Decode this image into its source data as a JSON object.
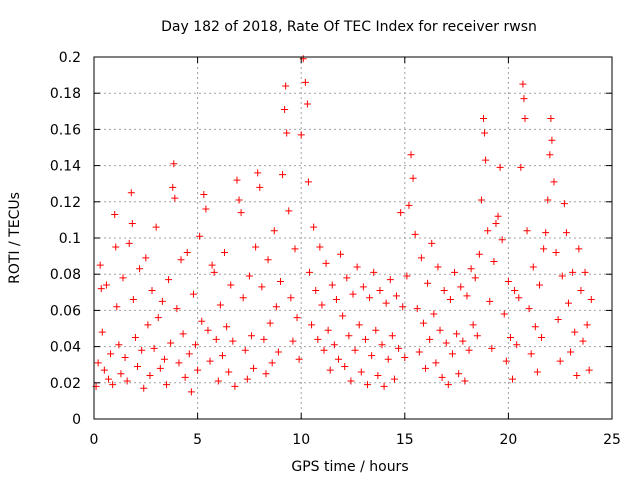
{
  "chart_data": {
    "type": "scatter",
    "title": "Day 182 of 2018, Rate Of TEC Index for receiver rwsn",
    "xlabel": "GPS time / hours",
    "ylabel": "ROTI / TECUs",
    "xlim": [
      0,
      25
    ],
    "ylim": [
      0,
      0.2
    ],
    "xticks": [
      "0",
      "5",
      "10",
      "15",
      "20",
      "25"
    ],
    "yticks": [
      "0",
      "0.02",
      "0.04",
      "0.06",
      "0.08",
      "0.1",
      "0.12",
      "0.14",
      "0.16",
      "0.18",
      "0.2"
    ],
    "grid": true,
    "marker": "+",
    "color": "#ff0000",
    "series": [
      {
        "points": [
          [
            0.1,
            0.018
          ],
          [
            0.2,
            0.031
          ],
          [
            0.3,
            0.085
          ],
          [
            0.35,
            0.072
          ],
          [
            0.4,
            0.048
          ],
          [
            0.5,
            0.027
          ],
          [
            0.6,
            0.074
          ],
          [
            0.7,
            0.022
          ],
          [
            0.8,
            0.036
          ],
          [
            0.9,
            0.019
          ],
          [
            1.0,
            0.113
          ],
          [
            1.05,
            0.095
          ],
          [
            1.1,
            0.062
          ],
          [
            1.2,
            0.041
          ],
          [
            1.3,
            0.025
          ],
          [
            1.4,
            0.078
          ],
          [
            1.5,
            0.034
          ],
          [
            1.6,
            0.021
          ],
          [
            1.7,
            0.097
          ],
          [
            1.8,
            0.125
          ],
          [
            1.85,
            0.108
          ],
          [
            1.9,
            0.066
          ],
          [
            2.0,
            0.045
          ],
          [
            2.1,
            0.029
          ],
          [
            2.2,
            0.083
          ],
          [
            2.3,
            0.038
          ],
          [
            2.4,
            0.017
          ],
          [
            2.5,
            0.089
          ],
          [
            2.6,
            0.052
          ],
          [
            2.7,
            0.024
          ],
          [
            2.8,
            0.071
          ],
          [
            2.9,
            0.039
          ],
          [
            3.0,
            0.106
          ],
          [
            3.1,
            0.056
          ],
          [
            3.2,
            0.028
          ],
          [
            3.3,
            0.065
          ],
          [
            3.4,
            0.033
          ],
          [
            3.5,
            0.019
          ],
          [
            3.6,
            0.077
          ],
          [
            3.7,
            0.042
          ],
          [
            3.8,
            0.128
          ],
          [
            3.85,
            0.141
          ],
          [
            3.9,
            0.122
          ],
          [
            4.0,
            0.061
          ],
          [
            4.1,
            0.031
          ],
          [
            4.2,
            0.088
          ],
          [
            4.3,
            0.047
          ],
          [
            4.4,
            0.023
          ],
          [
            4.5,
            0.092
          ],
          [
            4.6,
            0.036
          ],
          [
            4.7,
            0.015
          ],
          [
            4.8,
            0.069
          ],
          [
            4.9,
            0.041
          ],
          [
            5.0,
            0.027
          ],
          [
            5.1,
            0.101
          ],
          [
            5.2,
            0.054
          ],
          [
            5.3,
            0.124
          ],
          [
            5.4,
            0.116
          ],
          [
            5.5,
            0.049
          ],
          [
            5.6,
            0.032
          ],
          [
            5.7,
            0.085
          ],
          [
            5.8,
            0.081
          ],
          [
            5.9,
            0.044
          ],
          [
            6.0,
            0.021
          ],
          [
            6.1,
            0.063
          ],
          [
            6.2,
            0.035
          ],
          [
            6.3,
            0.092
          ],
          [
            6.4,
            0.051
          ],
          [
            6.5,
            0.026
          ],
          [
            6.6,
            0.074
          ],
          [
            6.7,
            0.043
          ],
          [
            6.8,
            0.018
          ],
          [
            6.9,
            0.132
          ],
          [
            7.0,
            0.121
          ],
          [
            7.1,
            0.114
          ],
          [
            7.2,
            0.067
          ],
          [
            7.3,
            0.038
          ],
          [
            7.4,
            0.022
          ],
          [
            7.5,
            0.079
          ],
          [
            7.6,
            0.046
          ],
          [
            7.7,
            0.028
          ],
          [
            7.8,
            0.095
          ],
          [
            7.9,
            0.136
          ],
          [
            8.0,
            0.128
          ],
          [
            8.1,
            0.073
          ],
          [
            8.2,
            0.044
          ],
          [
            8.3,
            0.025
          ],
          [
            8.4,
            0.088
          ],
          [
            8.5,
            0.053
          ],
          [
            8.6,
            0.031
          ],
          [
            8.7,
            0.104
          ],
          [
            8.8,
            0.062
          ],
          [
            8.9,
            0.037
          ],
          [
            9.0,
            0.076
          ],
          [
            9.1,
            0.135
          ],
          [
            9.2,
            0.171
          ],
          [
            9.25,
            0.184
          ],
          [
            9.3,
            0.158
          ],
          [
            9.4,
            0.115
          ],
          [
            9.5,
            0.067
          ],
          [
            9.6,
            0.043
          ],
          [
            9.7,
            0.094
          ],
          [
            9.8,
            0.056
          ],
          [
            9.9,
            0.033
          ],
          [
            10.0,
            0.157
          ],
          [
            10.1,
            0.199
          ],
          [
            10.2,
            0.186
          ],
          [
            10.3,
            0.174
          ],
          [
            10.35,
            0.131
          ],
          [
            10.4,
            0.081
          ],
          [
            10.5,
            0.052
          ],
          [
            10.6,
            0.106
          ],
          [
            10.7,
            0.071
          ],
          [
            10.8,
            0.044
          ],
          [
            10.9,
            0.095
          ],
          [
            11.0,
            0.063
          ],
          [
            11.1,
            0.038
          ],
          [
            11.2,
            0.086
          ],
          [
            11.3,
            0.049
          ],
          [
            11.4,
            0.027
          ],
          [
            11.5,
            0.074
          ],
          [
            11.6,
            0.041
          ],
          [
            11.7,
            0.066
          ],
          [
            11.8,
            0.033
          ],
          [
            11.9,
            0.091
          ],
          [
            12.0,
            0.057
          ],
          [
            12.1,
            0.029
          ],
          [
            12.2,
            0.078
          ],
          [
            12.3,
            0.046
          ],
          [
            12.4,
            0.021
          ],
          [
            12.5,
            0.069
          ],
          [
            12.6,
            0.038
          ],
          [
            12.7,
            0.084
          ],
          [
            12.8,
            0.052
          ],
          [
            12.9,
            0.026
          ],
          [
            13.0,
            0.073
          ],
          [
            13.1,
            0.044
          ],
          [
            13.2,
            0.019
          ],
          [
            13.3,
            0.067
          ],
          [
            13.4,
            0.035
          ],
          [
            13.5,
            0.081
          ],
          [
            13.6,
            0.049
          ],
          [
            13.7,
            0.024
          ],
          [
            13.8,
            0.071
          ],
          [
            13.9,
            0.041
          ],
          [
            14.0,
            0.018
          ],
          [
            14.1,
            0.064
          ],
          [
            14.2,
            0.033
          ],
          [
            14.3,
            0.077
          ],
          [
            14.4,
            0.046
          ],
          [
            14.5,
            0.022
          ],
          [
            14.6,
            0.068
          ],
          [
            14.7,
            0.039
          ],
          [
            14.8,
            0.114
          ],
          [
            14.9,
            0.062
          ],
          [
            15.0,
            0.034
          ],
          [
            15.1,
            0.079
          ],
          [
            15.2,
            0.118
          ],
          [
            15.3,
            0.146
          ],
          [
            15.4,
            0.133
          ],
          [
            15.5,
            0.102
          ],
          [
            15.6,
            0.061
          ],
          [
            15.7,
            0.037
          ],
          [
            15.8,
            0.089
          ],
          [
            15.9,
            0.053
          ],
          [
            16.0,
            0.028
          ],
          [
            16.1,
            0.075
          ],
          [
            16.2,
            0.044
          ],
          [
            16.3,
            0.097
          ],
          [
            16.4,
            0.058
          ],
          [
            16.5,
            0.031
          ],
          [
            16.6,
            0.084
          ],
          [
            16.7,
            0.049
          ],
          [
            16.8,
            0.023
          ],
          [
            16.9,
            0.071
          ],
          [
            17.0,
            0.042
          ],
          [
            17.1,
            0.019
          ],
          [
            17.2,
            0.066
          ],
          [
            17.3,
            0.036
          ],
          [
            17.4,
            0.081
          ],
          [
            17.5,
            0.047
          ],
          [
            17.6,
            0.025
          ],
          [
            17.7,
            0.073
          ],
          [
            17.8,
            0.043
          ],
          [
            17.9,
            0.021
          ],
          [
            18.0,
            0.068
          ],
          [
            18.1,
            0.038
          ],
          [
            18.2,
            0.083
          ],
          [
            18.3,
            0.052
          ],
          [
            18.4,
            0.078
          ],
          [
            18.5,
            0.046
          ],
          [
            18.6,
            0.091
          ],
          [
            18.7,
            0.121
          ],
          [
            18.8,
            0.166
          ],
          [
            18.85,
            0.158
          ],
          [
            18.9,
            0.143
          ],
          [
            19.0,
            0.104
          ],
          [
            19.1,
            0.065
          ],
          [
            19.2,
            0.039
          ],
          [
            19.3,
            0.087
          ],
          [
            19.4,
            0.108
          ],
          [
            19.5,
            0.112
          ],
          [
            19.6,
            0.139
          ],
          [
            19.7,
            0.099
          ],
          [
            19.8,
            0.058
          ],
          [
            19.9,
            0.032
          ],
          [
            20.0,
            0.076
          ],
          [
            20.1,
            0.045
          ],
          [
            20.2,
            0.022
          ],
          [
            20.3,
            0.071
          ],
          [
            20.4,
            0.041
          ],
          [
            20.5,
            0.067
          ],
          [
            20.6,
            0.139
          ],
          [
            20.7,
            0.185
          ],
          [
            20.75,
            0.177
          ],
          [
            20.8,
            0.166
          ],
          [
            20.9,
            0.104
          ],
          [
            21.0,
            0.061
          ],
          [
            21.1,
            0.036
          ],
          [
            21.2,
            0.084
          ],
          [
            21.3,
            0.051
          ],
          [
            21.4,
            0.026
          ],
          [
            21.5,
            0.074
          ],
          [
            21.6,
            0.045
          ],
          [
            21.7,
            0.094
          ],
          [
            21.8,
            0.103
          ],
          [
            21.9,
            0.121
          ],
          [
            22.0,
            0.146
          ],
          [
            22.05,
            0.166
          ],
          [
            22.1,
            0.154
          ],
          [
            22.2,
            0.131
          ],
          [
            22.3,
            0.092
          ],
          [
            22.4,
            0.055
          ],
          [
            22.5,
            0.032
          ],
          [
            22.6,
            0.079
          ],
          [
            22.7,
            0.119
          ],
          [
            22.8,
            0.103
          ],
          [
            22.9,
            0.064
          ],
          [
            23.0,
            0.037
          ],
          [
            23.1,
            0.081
          ],
          [
            23.2,
            0.048
          ],
          [
            23.3,
            0.024
          ],
          [
            23.4,
            0.094
          ],
          [
            23.5,
            0.071
          ],
          [
            23.6,
            0.043
          ],
          [
            23.7,
            0.081
          ],
          [
            23.8,
            0.052
          ],
          [
            23.9,
            0.027
          ],
          [
            24.0,
            0.066
          ]
        ]
      }
    ]
  }
}
